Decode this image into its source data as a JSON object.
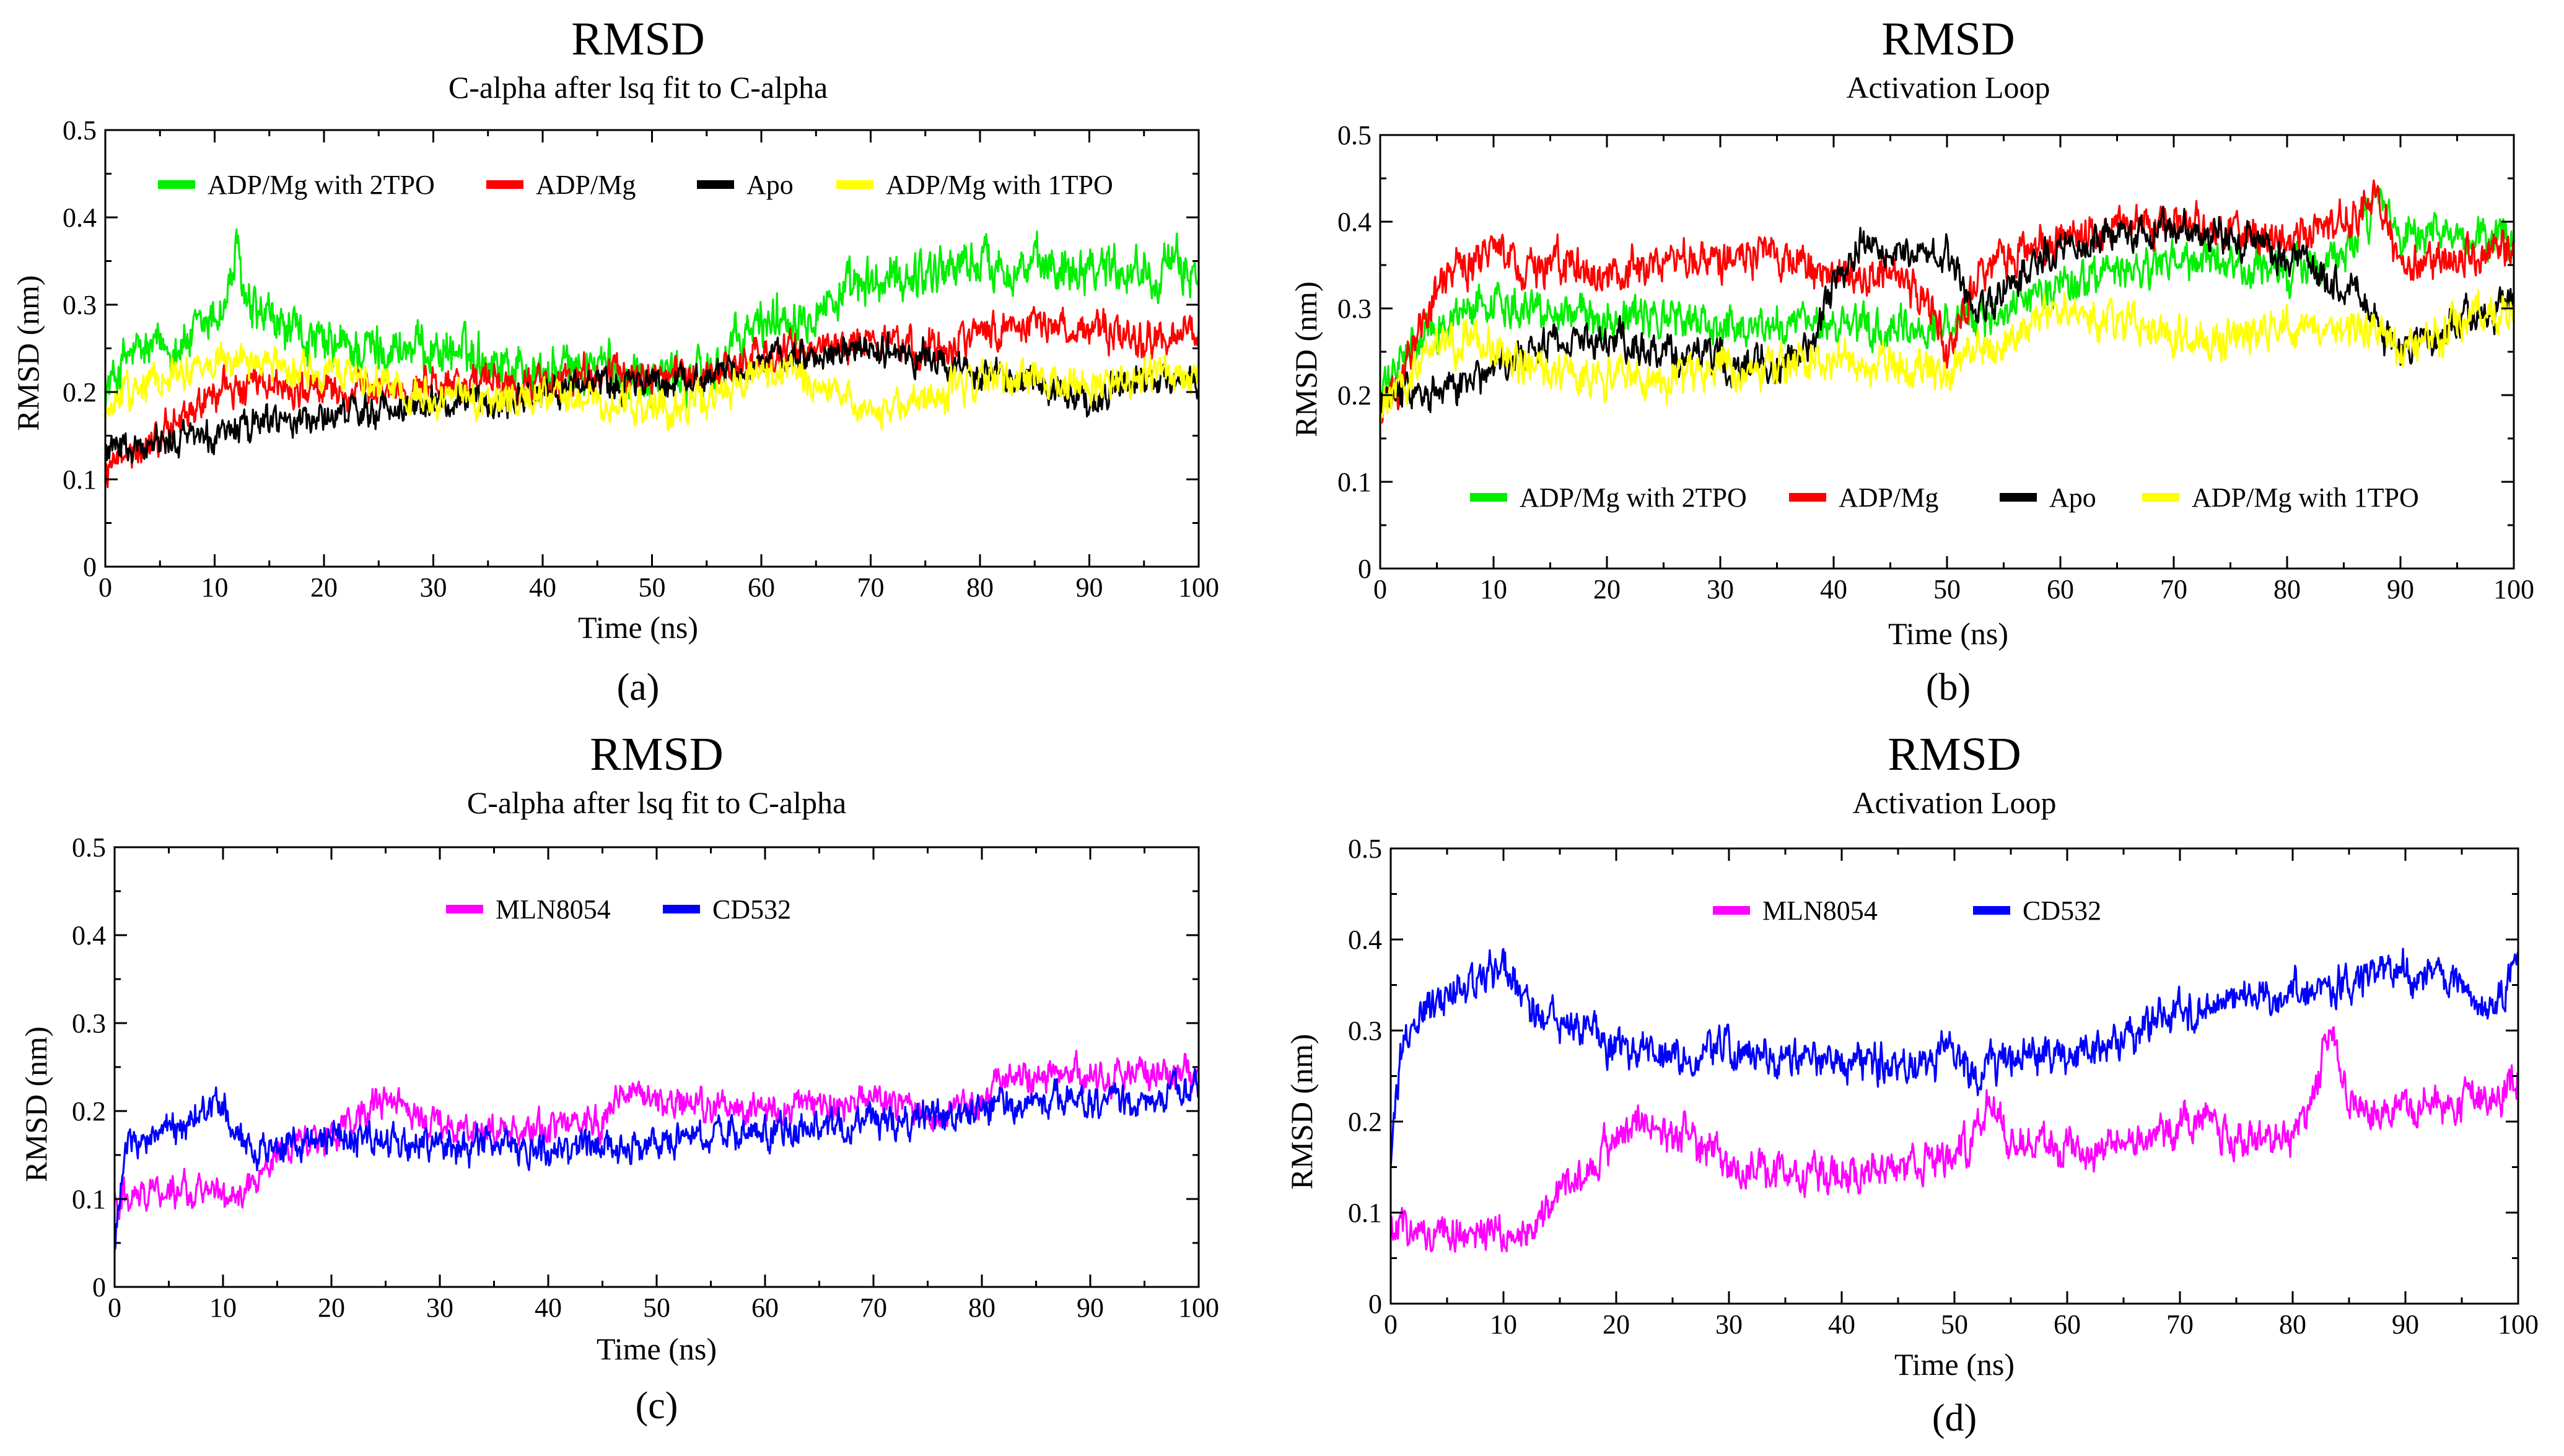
{
  "chart_data": [
    {
      "id": "a",
      "type": "line",
      "title": "RMSD",
      "subtitle": "C-alpha after lsq fit to C-alpha",
      "xlabel": "Time (ns)",
      "ylabel": "RMSD (nm)",
      "caption": "(a)",
      "xlim": [
        0,
        100
      ],
      "ylim": [
        0,
        0.5
      ],
      "xticks": [
        "0",
        "10",
        "20",
        "30",
        "40",
        "50",
        "60",
        "70",
        "80",
        "90",
        "100"
      ],
      "yticks": [
        "0",
        "0.1",
        "0.2",
        "0.3",
        "0.4",
        "0.5"
      ],
      "legend_position": "top",
      "series": [
        {
          "name": "ADP/Mg with 2TPO",
          "color": "#00ee00",
          "noise": 0.022,
          "x": [
            0,
            2,
            5,
            8,
            11,
            12,
            13,
            15,
            20,
            25,
            30,
            35,
            40,
            45,
            50,
            55,
            60,
            65,
            70,
            75,
            80,
            85,
            90,
            95,
            100
          ],
          "y": [
            0.2,
            0.24,
            0.25,
            0.26,
            0.3,
            0.36,
            0.29,
            0.28,
            0.25,
            0.25,
            0.25,
            0.24,
            0.22,
            0.23,
            0.22,
            0.22,
            0.28,
            0.3,
            0.32,
            0.34,
            0.35,
            0.34,
            0.35,
            0.34,
            0.34
          ]
        },
        {
          "name": "ADP/Mg",
          "color": "#ff0000",
          "noise": 0.016,
          "x": [
            0,
            2,
            5,
            8,
            10,
            15,
            20,
            25,
            30,
            35,
            40,
            45,
            50,
            55,
            60,
            65,
            70,
            75,
            80,
            85,
            90,
            95,
            100
          ],
          "y": [
            0.11,
            0.12,
            0.15,
            0.18,
            0.2,
            0.21,
            0.2,
            0.2,
            0.21,
            0.21,
            0.21,
            0.22,
            0.22,
            0.22,
            0.24,
            0.25,
            0.26,
            0.25,
            0.27,
            0.28,
            0.27,
            0.26,
            0.27
          ]
        },
        {
          "name": "Apo",
          "color": "#000000",
          "noise": 0.014,
          "x": [
            0,
            2,
            5,
            8,
            10,
            15,
            20,
            25,
            30,
            35,
            40,
            45,
            50,
            55,
            60,
            65,
            70,
            75,
            80,
            85,
            90,
            95,
            100
          ],
          "y": [
            0.13,
            0.13,
            0.14,
            0.15,
            0.15,
            0.17,
            0.17,
            0.18,
            0.19,
            0.19,
            0.2,
            0.21,
            0.21,
            0.22,
            0.23,
            0.24,
            0.25,
            0.24,
            0.22,
            0.21,
            0.19,
            0.21,
            0.21
          ]
        },
        {
          "name": "ADP/Mg with 1TPO",
          "color": "#ffff00",
          "noise": 0.016,
          "x": [
            0,
            2,
            5,
            8,
            10,
            15,
            20,
            25,
            30,
            35,
            40,
            45,
            50,
            55,
            60,
            65,
            70,
            75,
            80,
            85,
            90,
            95,
            100
          ],
          "y": [
            0.17,
            0.2,
            0.22,
            0.23,
            0.24,
            0.23,
            0.22,
            0.21,
            0.2,
            0.19,
            0.19,
            0.19,
            0.18,
            0.19,
            0.22,
            0.21,
            0.18,
            0.19,
            0.21,
            0.22,
            0.2,
            0.22,
            0.22
          ]
        }
      ]
    },
    {
      "id": "b",
      "type": "line",
      "title": "RMSD",
      "subtitle": "Activation Loop",
      "xlabel": "Time (ns)",
      "ylabel": "RMSD (nm)",
      "caption": "(b)",
      "xlim": [
        0,
        100
      ],
      "ylim": [
        0,
        0.5
      ],
      "xticks": [
        "0",
        "10",
        "20",
        "30",
        "40",
        "50",
        "60",
        "70",
        "80",
        "90",
        "100"
      ],
      "yticks": [
        "0",
        "0.1",
        "0.2",
        "0.3",
        "0.4",
        "0.5"
      ],
      "legend_position": "bottom",
      "series": [
        {
          "name": "ADP/Mg with 2TPO",
          "color": "#00ee00",
          "noise": 0.018,
          "x": [
            0,
            2,
            5,
            8,
            10,
            15,
            20,
            25,
            30,
            35,
            40,
            45,
            50,
            55,
            60,
            65,
            70,
            75,
            80,
            85,
            88,
            90,
            95,
            100
          ],
          "y": [
            0.2,
            0.24,
            0.28,
            0.3,
            0.31,
            0.3,
            0.29,
            0.29,
            0.28,
            0.28,
            0.28,
            0.27,
            0.28,
            0.3,
            0.33,
            0.34,
            0.35,
            0.35,
            0.34,
            0.36,
            0.42,
            0.38,
            0.38,
            0.38
          ]
        },
        {
          "name": "ADP/Mg",
          "color": "#ff0000",
          "noise": 0.018,
          "x": [
            0,
            2,
            4,
            6,
            10,
            15,
            20,
            25,
            30,
            35,
            40,
            45,
            49,
            50,
            52,
            55,
            60,
            65,
            70,
            75,
            80,
            85,
            88,
            90,
            95,
            100
          ],
          "y": [
            0.17,
            0.22,
            0.3,
            0.34,
            0.36,
            0.35,
            0.34,
            0.35,
            0.36,
            0.37,
            0.33,
            0.34,
            0.3,
            0.24,
            0.32,
            0.36,
            0.38,
            0.4,
            0.4,
            0.39,
            0.38,
            0.4,
            0.42,
            0.35,
            0.36,
            0.37
          ]
        },
        {
          "name": "Apo",
          "color": "#000000",
          "noise": 0.016,
          "x": [
            0,
            2,
            5,
            8,
            10,
            15,
            20,
            25,
            30,
            35,
            38,
            40,
            42,
            45,
            48,
            50,
            52,
            55,
            60,
            65,
            70,
            75,
            80,
            85,
            90,
            92,
            95,
            100
          ],
          "y": [
            0.2,
            0.2,
            0.2,
            0.21,
            0.23,
            0.26,
            0.26,
            0.25,
            0.24,
            0.23,
            0.26,
            0.32,
            0.38,
            0.37,
            0.37,
            0.36,
            0.3,
            0.32,
            0.37,
            0.39,
            0.39,
            0.38,
            0.36,
            0.33,
            0.25,
            0.26,
            0.28,
            0.31
          ]
        },
        {
          "name": "ADP/Mg with 1TPO",
          "color": "#ffff00",
          "noise": 0.018,
          "x": [
            0,
            2,
            5,
            8,
            10,
            15,
            20,
            25,
            30,
            35,
            40,
            45,
            50,
            55,
            60,
            65,
            70,
            75,
            80,
            85,
            90,
            95,
            100
          ],
          "y": [
            0.18,
            0.22,
            0.25,
            0.27,
            0.25,
            0.22,
            0.22,
            0.22,
            0.23,
            0.23,
            0.24,
            0.24,
            0.23,
            0.26,
            0.3,
            0.28,
            0.27,
            0.26,
            0.28,
            0.28,
            0.26,
            0.28,
            0.3
          ]
        }
      ]
    },
    {
      "id": "c",
      "type": "line",
      "title": "RMSD",
      "subtitle": "C-alpha after lsq fit to C-alpha",
      "xlabel": "Time (ns)",
      "ylabel": "RMSD (nm)",
      "caption": "(c)",
      "xlim": [
        0,
        100
      ],
      "ylim": [
        0,
        0.5
      ],
      "xticks": [
        "0",
        "10",
        "20",
        "30",
        "40",
        "50",
        "60",
        "70",
        "80",
        "90",
        "100"
      ],
      "yticks": [
        "0",
        "0.1",
        "0.2",
        "0.3",
        "0.4",
        "0.5"
      ],
      "legend_position": "top",
      "series": [
        {
          "name": "MLN8054",
          "color": "#ff00ff",
          "noise": 0.014,
          "x": [
            0,
            2,
            5,
            8,
            10,
            12,
            15,
            18,
            20,
            22,
            25,
            30,
            35,
            40,
            45,
            47,
            50,
            55,
            60,
            65,
            70,
            75,
            80,
            83,
            85,
            90,
            95,
            100
          ],
          "y": [
            0.1,
            0.11,
            0.11,
            0.11,
            0.1,
            0.11,
            0.15,
            0.17,
            0.17,
            0.19,
            0.21,
            0.18,
            0.18,
            0.18,
            0.19,
            0.23,
            0.21,
            0.2,
            0.2,
            0.21,
            0.21,
            0.2,
            0.21,
            0.24,
            0.24,
            0.24,
            0.24,
            0.24
          ]
        },
        {
          "name": "CD532",
          "color": "#0000ff",
          "noise": 0.014,
          "x": [
            0,
            1,
            3,
            5,
            8,
            10,
            12,
            15,
            20,
            25,
            30,
            35,
            40,
            45,
            50,
            55,
            60,
            65,
            70,
            75,
            80,
            85,
            90,
            95,
            100
          ],
          "y": [
            0.05,
            0.16,
            0.17,
            0.17,
            0.2,
            0.2,
            0.16,
            0.16,
            0.17,
            0.17,
            0.16,
            0.16,
            0.16,
            0.16,
            0.16,
            0.17,
            0.18,
            0.18,
            0.19,
            0.19,
            0.2,
            0.21,
            0.21,
            0.21,
            0.23
          ]
        }
      ]
    },
    {
      "id": "d",
      "type": "line",
      "title": "RMSD",
      "subtitle": "Activation Loop",
      "xlabel": "Time (ns)",
      "ylabel": "RMSD (nm)",
      "caption": "(d)",
      "xlim": [
        0,
        100
      ],
      "ylim": [
        0,
        0.5
      ],
      "xticks": [
        "0",
        "10",
        "20",
        "30",
        "40",
        "50",
        "60",
        "70",
        "80",
        "90",
        "100"
      ],
      "yticks": [
        "0",
        "0.1",
        "0.2",
        "0.3",
        "0.4",
        "0.5"
      ],
      "legend_position": "top",
      "series": [
        {
          "name": "MLN8054",
          "color": "#ff00ff",
          "noise": 0.016,
          "x": [
            0,
            3,
            5,
            8,
            10,
            13,
            15,
            18,
            20,
            22,
            25,
            28,
            30,
            35,
            40,
            45,
            50,
            52,
            53,
            55,
            60,
            65,
            70,
            72,
            75,
            80,
            82,
            83,
            85,
            90,
            95,
            100
          ],
          "y": [
            0.08,
            0.08,
            0.08,
            0.08,
            0.07,
            0.08,
            0.12,
            0.16,
            0.18,
            0.2,
            0.19,
            0.17,
            0.15,
            0.14,
            0.14,
            0.15,
            0.16,
            0.19,
            0.22,
            0.18,
            0.17,
            0.18,
            0.19,
            0.2,
            0.18,
            0.18,
            0.22,
            0.3,
            0.22,
            0.21,
            0.22,
            0.24
          ]
        },
        {
          "name": "CD532",
          "color": "#0000ff",
          "noise": 0.016,
          "x": [
            0,
            1,
            3,
            5,
            8,
            10,
            12,
            15,
            20,
            25,
            30,
            35,
            40,
            45,
            50,
            52,
            55,
            60,
            65,
            70,
            75,
            80,
            85,
            88,
            90,
            95,
            98,
            100
          ],
          "y": [
            0.16,
            0.28,
            0.32,
            0.34,
            0.36,
            0.37,
            0.33,
            0.31,
            0.28,
            0.27,
            0.28,
            0.27,
            0.27,
            0.26,
            0.28,
            0.25,
            0.27,
            0.27,
            0.29,
            0.32,
            0.33,
            0.34,
            0.35,
            0.37,
            0.36,
            0.35,
            0.32,
            0.38
          ]
        }
      ]
    }
  ]
}
